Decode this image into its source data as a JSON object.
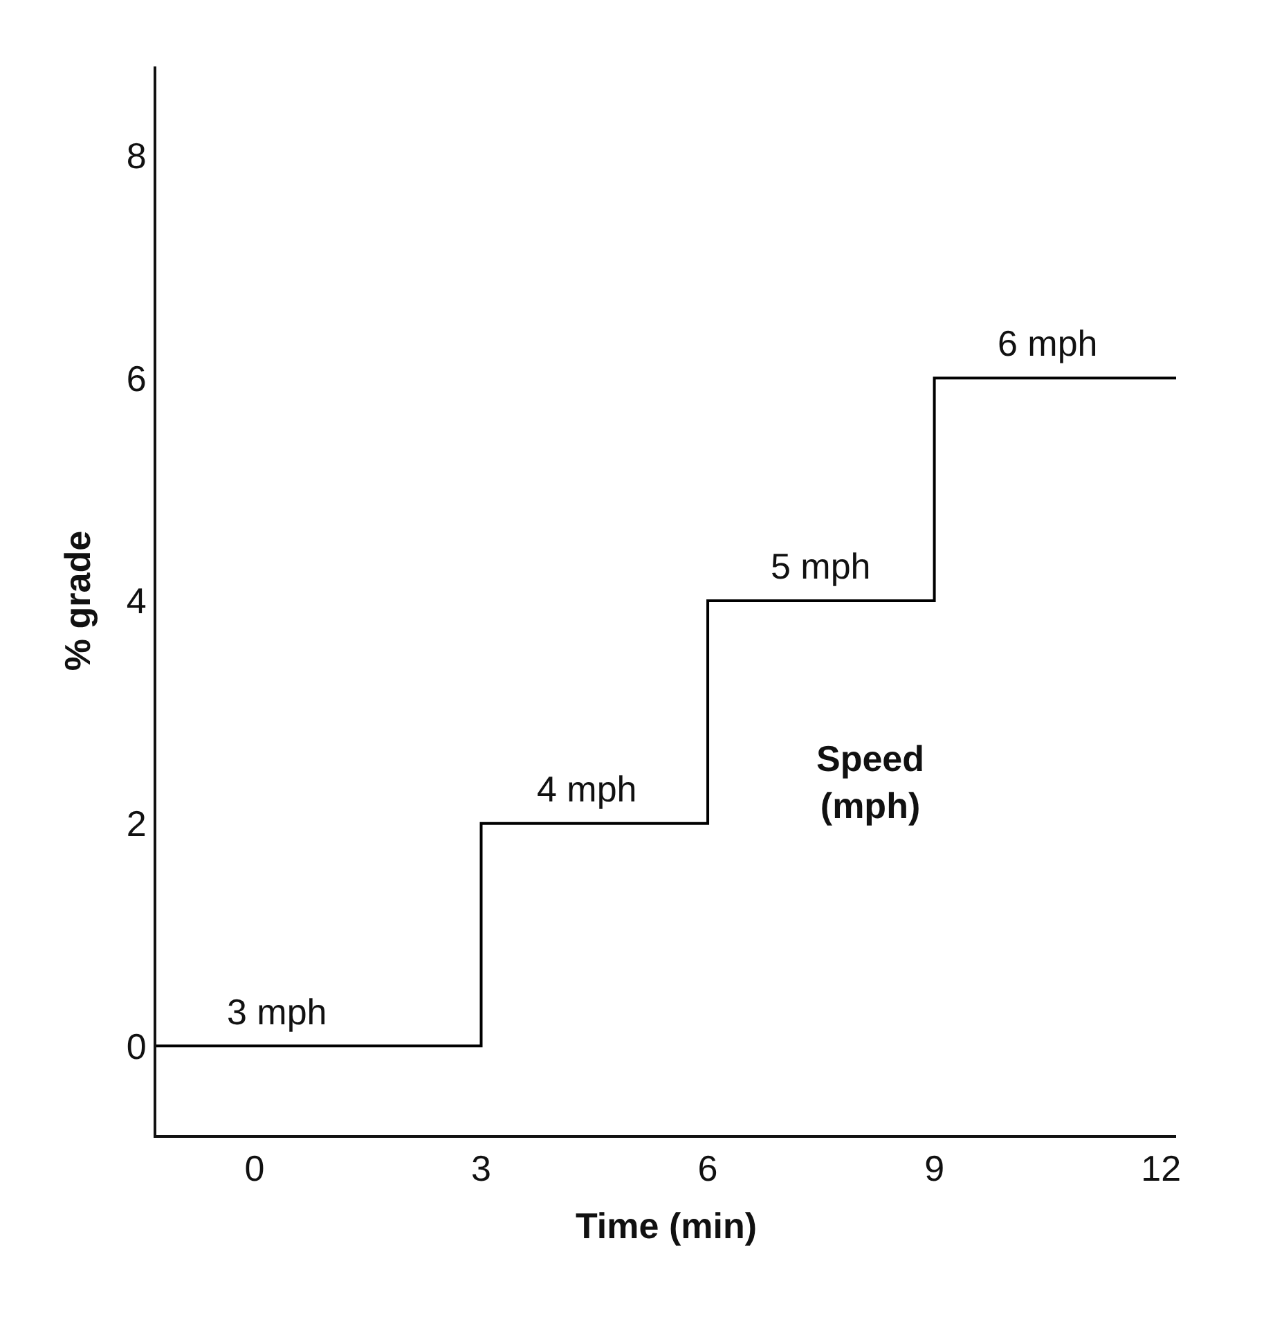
{
  "chart_data": {
    "type": "step",
    "xlabel": "Time (min)",
    "ylabel": "% grade",
    "x": [
      -1.3,
      3,
      6,
      9,
      12.2
    ],
    "series": [
      {
        "color": "#000000",
        "values": [
          0,
          2,
          4,
          6,
          6
        ]
      }
    ],
    "xlim": [
      -1.3,
      12.2
    ],
    "xticks": [
      0,
      3,
      6,
      9,
      12
    ],
    "ylim": [
      -0.8,
      8.8
    ],
    "yticks": [
      0,
      2,
      4,
      6,
      8
    ],
    "grid": false,
    "marker": "none",
    "line_style": "solid",
    "annotations": [
      {
        "text": "3 mph",
        "x": 0.3,
        "y": 0
      },
      {
        "text": "4 mph",
        "x": 4.4,
        "y": 2
      },
      {
        "text": "5 mph",
        "x": 7.5,
        "y": 4
      },
      {
        "text": "6 mph",
        "x": 10.5,
        "y": 6
      },
      "Speed\n(mph)"
    ]
  }
}
